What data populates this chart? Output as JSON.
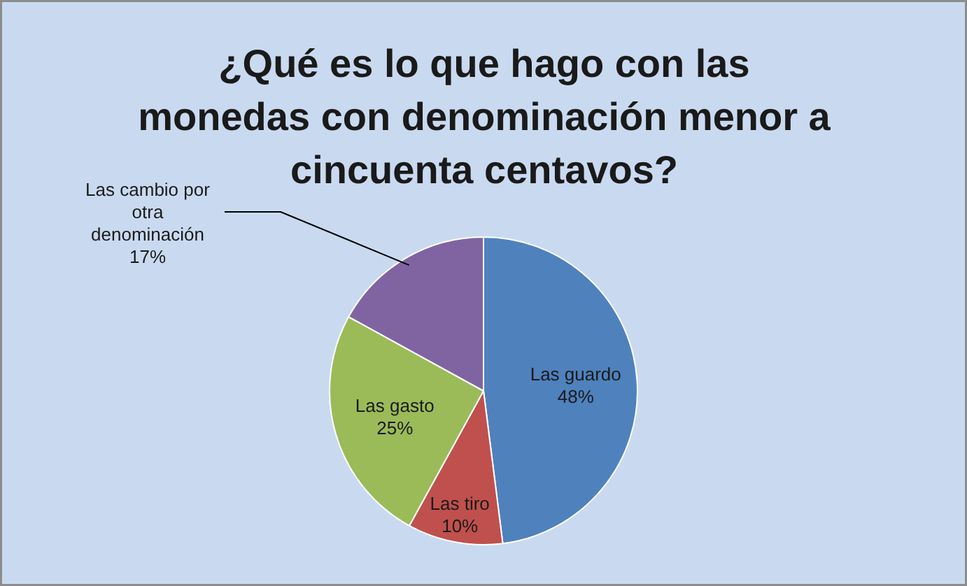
{
  "chart_data": {
    "type": "pie",
    "title": "¿Qué es lo que hago con las monedas con denominación menor a cincuenta centavos?",
    "categories": [
      "Las guardo",
      "Las tiro",
      "Las gasto",
      "Las cambio por otra denominación"
    ],
    "values": [
      48,
      10,
      25,
      17
    ],
    "colors": [
      "#4f81bd",
      "#c0504d",
      "#9bbb59",
      "#8064a2"
    ],
    "value_labels": [
      "48%",
      "10%",
      "25%",
      "17%"
    ],
    "legend": false
  }
}
